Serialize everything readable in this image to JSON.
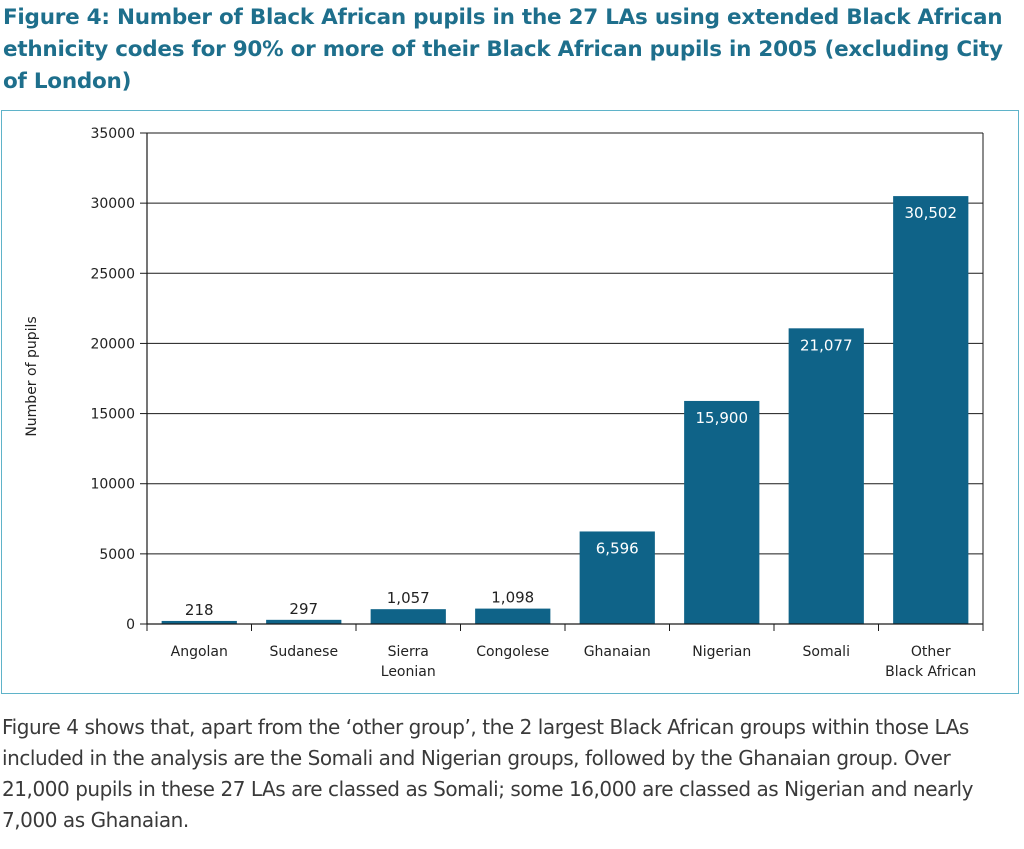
{
  "figure": {
    "title": "Figure 4: Number of Black African pupils in the 27 LAs using extended Black African ethnicity codes for 90% or more of their Black African pupils in 2005 (excluding City of London)",
    "caption": "Figure 4 shows that, apart from the ‘other group’, the 2 largest Black African groups within those LAs included in the analysis are the Somali and Nigerian groups, followed by the Ghanaian group. Over 21,000 pupils in these 27 LAs are classed as Somali; some 16,000 are classed as Nigerian and nearly 7,000 as Ghanaian."
  },
  "colors": {
    "title": "#1e6f8c",
    "bar": "#0f6388",
    "frame": "#5fb3c9",
    "grid": "#1a1a1a"
  },
  "chart_data": {
    "type": "bar",
    "categories": [
      "Angolan",
      "Sudanese",
      "Sierra\nLeonian",
      "Congolese",
      "Ghanaian",
      "Nigerian",
      "Somali",
      "Other\nBlack African"
    ],
    "values": [
      218,
      297,
      1057,
      1098,
      6596,
      15900,
      21077,
      30502
    ],
    "value_labels": [
      "218",
      "297",
      "1,057",
      "1,098",
      "6,596",
      "15,900",
      "21,077",
      "30,502"
    ],
    "ylabel": "Number of pupils",
    "ylim": [
      0,
      35000
    ],
    "yticks": [
      0,
      5000,
      10000,
      15000,
      20000,
      25000,
      30000,
      35000
    ],
    "ytick_labels": [
      "0",
      "5000",
      "10000",
      "15000",
      "20000",
      "25000",
      "30000",
      "35000"
    ],
    "grid": true
  }
}
